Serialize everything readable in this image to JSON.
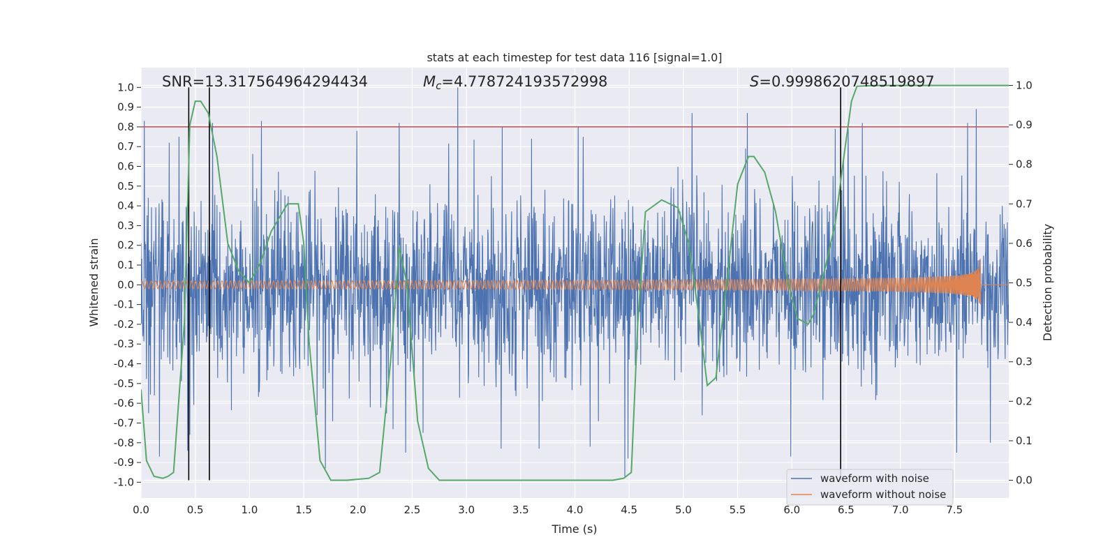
{
  "chart_data": {
    "type": "line",
    "title": "stats at each timestep for test data 116 [signal=1.0]",
    "xlabel": "Time (s)",
    "ylabel": "Whitened strain",
    "y2label": "Detection probability",
    "xlim": [
      0.0,
      8.0
    ],
    "ylim": [
      -1.08,
      1.1
    ],
    "y2lim": [
      -0.045,
      1.045
    ],
    "x_ticks": [
      "0.0",
      "0.5",
      "1.0",
      "1.5",
      "2.0",
      "2.5",
      "3.0",
      "3.5",
      "4.0",
      "4.5",
      "5.0",
      "5.5",
      "6.0",
      "6.5",
      "7.0",
      "7.5"
    ],
    "y_ticks": [
      "1.0",
      "0.9",
      "0.8",
      "0.7",
      "0.6",
      "0.5",
      "0.4",
      "0.3",
      "0.2",
      "0.1",
      "0.0",
      "-0.1",
      "-0.2",
      "-0.3",
      "-0.4",
      "-0.5",
      "-0.6",
      "-0.7",
      "-0.8",
      "-0.9",
      "-1.0"
    ],
    "y2_ticks": [
      "1.0",
      "0.9",
      "0.8",
      "0.7",
      "0.6",
      "0.5",
      "0.4",
      "0.3",
      "0.2",
      "0.1",
      "0.0"
    ],
    "grid": true,
    "legend_position": "bottom-right",
    "annotations": {
      "snr": "SNR=13.317564964294434",
      "mc_symbol": "M",
      "mc_sub": "c",
      "mc_value": "=4.778724193572998",
      "s_symbol": "S",
      "s_value": "=0.9998620748519897"
    },
    "threshold": {
      "value": 0.8,
      "color": "#c44e52"
    },
    "vertical_lines": [
      0.44,
      0.63,
      6.45
    ],
    "series": [
      {
        "name": "waveform with noise",
        "color": "#4c72b0",
        "axis": "left",
        "noise_std": 0.22,
        "spikes": [
          [
            0.03,
            0.83
          ],
          [
            0.07,
            -0.65
          ],
          [
            0.17,
            -0.87
          ],
          [
            0.26,
            0.72
          ],
          [
            0.35,
            0.75
          ],
          [
            0.43,
            -0.84
          ],
          [
            0.45,
            -0.76
          ],
          [
            0.66,
            0.82
          ],
          [
            1.11,
            0.83
          ],
          [
            1.7,
            -0.93
          ],
          [
            1.99,
            0.78
          ],
          [
            2.38,
            0.82
          ],
          [
            2.44,
            -0.85
          ],
          [
            2.6,
            -0.75
          ],
          [
            2.92,
            1.0
          ],
          [
            3.33,
            0.8
          ],
          [
            3.32,
            -0.83
          ],
          [
            3.6,
            0.74
          ],
          [
            3.67,
            -0.83
          ],
          [
            4.03,
            0.8
          ],
          [
            4.14,
            -0.82
          ],
          [
            4.46,
            -0.97
          ],
          [
            4.49,
            -0.88
          ],
          [
            5.08,
            0.87
          ],
          [
            5.59,
            0.87
          ],
          [
            5.99,
            -0.87
          ],
          [
            6.4,
            0.79
          ],
          [
            6.52,
            0.79
          ],
          [
            6.65,
            0.82
          ],
          [
            7.52,
            -0.85
          ],
          [
            7.62,
            0.82
          ],
          [
            7.7,
            0.89
          ],
          [
            7.83,
            -0.8
          ]
        ]
      },
      {
        "name": "waveform without noise",
        "color": "#dd8452",
        "axis": "left",
        "amplitude_start": 0.02,
        "coalescence_time": 7.74,
        "peak": 0.27
      },
      {
        "name": "detection probability",
        "color": "#55a868",
        "axis": "right",
        "points": [
          [
            0.0,
            0.23
          ],
          [
            0.05,
            0.05
          ],
          [
            0.12,
            0.01
          ],
          [
            0.2,
            0.005
          ],
          [
            0.25,
            0.01
          ],
          [
            0.3,
            0.02
          ],
          [
            0.4,
            0.4
          ],
          [
            0.45,
            0.9
          ],
          [
            0.5,
            0.96
          ],
          [
            0.55,
            0.96
          ],
          [
            0.62,
            0.93
          ],
          [
            0.7,
            0.82
          ],
          [
            0.8,
            0.6
          ],
          [
            0.9,
            0.53
          ],
          [
            1.0,
            0.5
          ],
          [
            1.1,
            0.55
          ],
          [
            1.2,
            0.63
          ],
          [
            1.35,
            0.7
          ],
          [
            1.45,
            0.7
          ],
          [
            1.5,
            0.6
          ],
          [
            1.55,
            0.35
          ],
          [
            1.65,
            0.05
          ],
          [
            1.75,
            0.0
          ],
          [
            1.9,
            0.0
          ],
          [
            2.1,
            0.005
          ],
          [
            2.2,
            0.02
          ],
          [
            2.3,
            0.3
          ],
          [
            2.38,
            0.59
          ],
          [
            2.45,
            0.5
          ],
          [
            2.55,
            0.15
          ],
          [
            2.65,
            0.03
          ],
          [
            2.75,
            0.0
          ],
          [
            3.0,
            0.0
          ],
          [
            3.5,
            0.0
          ],
          [
            4.0,
            0.0
          ],
          [
            4.35,
            0.0
          ],
          [
            4.45,
            0.005
          ],
          [
            4.52,
            0.02
          ],
          [
            4.58,
            0.4
          ],
          [
            4.65,
            0.68
          ],
          [
            4.8,
            0.71
          ],
          [
            4.95,
            0.69
          ],
          [
            5.05,
            0.6
          ],
          [
            5.15,
            0.4
          ],
          [
            5.22,
            0.24
          ],
          [
            5.3,
            0.26
          ],
          [
            5.4,
            0.5
          ],
          [
            5.5,
            0.75
          ],
          [
            5.6,
            0.82
          ],
          [
            5.65,
            0.82
          ],
          [
            5.75,
            0.78
          ],
          [
            5.85,
            0.68
          ],
          [
            5.95,
            0.52
          ],
          [
            6.05,
            0.41
          ],
          [
            6.15,
            0.395
          ],
          [
            6.2,
            0.42
          ],
          [
            6.3,
            0.53
          ],
          [
            6.4,
            0.65
          ],
          [
            6.48,
            0.82
          ],
          [
            6.55,
            0.96
          ],
          [
            6.6,
            0.998
          ],
          [
            6.8,
            1.0
          ],
          [
            7.0,
            1.0
          ],
          [
            7.5,
            1.0
          ],
          [
            8.0,
            1.0
          ]
        ]
      }
    ]
  }
}
